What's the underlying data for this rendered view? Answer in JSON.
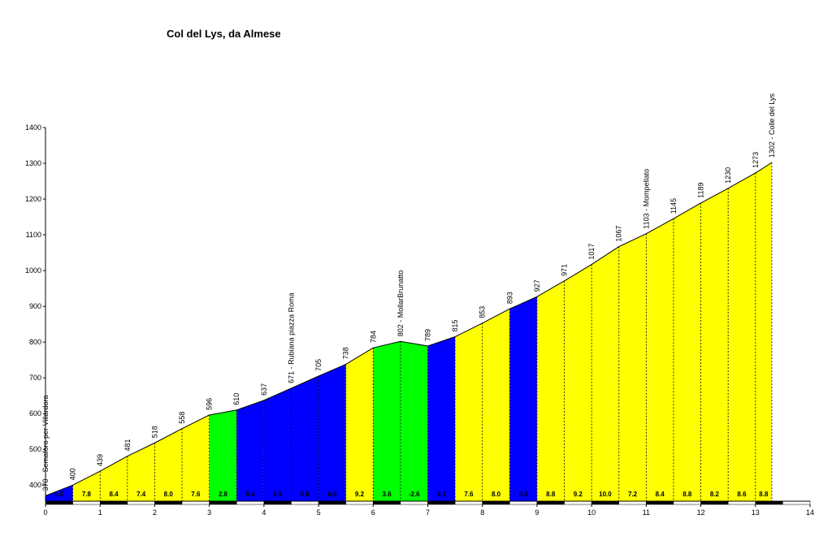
{
  "chart_data": {
    "type": "area",
    "title": "Col del Lys, da Almese",
    "x": [
      0,
      0.5,
      1,
      1.5,
      2,
      2.5,
      3,
      3.5,
      4,
      4.5,
      5,
      5.5,
      6,
      6.5,
      7,
      7.5,
      8,
      8.5,
      9,
      9.5,
      10,
      10.5,
      11,
      11.5,
      12,
      12.5,
      13,
      13.3
    ],
    "values": [
      370,
      400,
      439,
      481,
      518,
      558,
      596,
      610,
      637,
      671,
      705,
      738,
      784,
      802,
      789,
      815,
      853,
      893,
      927,
      971,
      1017,
      1067,
      1103,
      1145,
      1189,
      1230,
      1273,
      1302
    ],
    "value_labels": [
      "370 - Semaforo per Villardora",
      "400",
      "439",
      "481",
      "518",
      "558",
      "596",
      "610",
      "637",
      "671 - Rubiana piazza Roma",
      "705",
      "738",
      "784",
      "802 - MollarBrunatto",
      "789",
      "815",
      "853",
      "893",
      "927",
      "971",
      "1017",
      "1067",
      "1103 - Mompellato",
      "1145",
      "1189",
      "1230",
      "1273",
      "1302 - Colle del Lys"
    ],
    "segments": {
      "values": [
        6.0,
        7.8,
        8.4,
        7.4,
        8.0,
        7.6,
        2.8,
        5.4,
        6.8,
        6.8,
        6.6,
        9.2,
        3.6,
        -2.6,
        5.2,
        7.6,
        8.0,
        6.8,
        8.8,
        9.2,
        10.0,
        7.2,
        8.4,
        8.8,
        8.2,
        8.6,
        8.8
      ],
      "value_labels": [
        "6.0",
        "7.8",
        "8.4",
        "7.4",
        "8.0",
        "7.6",
        "2.8",
        "5.4",
        "6.8",
        "6.8",
        "6.6",
        "9.2",
        "3.6",
        "-2.6",
        "5.2",
        "7.6",
        "8.0",
        "6.8",
        "8.8",
        "9.2",
        "10.0",
        "7.2",
        "8.4",
        "8.8",
        "8.2",
        "8.6",
        "8.8"
      ],
      "colors": [
        "#0000ff",
        "#ffff00",
        "#ffff00",
        "#ffff00",
        "#ffff00",
        "#ffff00",
        "#00ff00",
        "#0000ff",
        "#0000ff",
        "#0000ff",
        "#0000ff",
        "#ffff00",
        "#00ff00",
        "#00ff00",
        "#0000ff",
        "#ffff00",
        "#ffff00",
        "#0000ff",
        "#ffff00",
        "#ffff00",
        "#ffff00",
        "#ffff00",
        "#ffff00",
        "#ffff00",
        "#ffff00",
        "#ffff00",
        "#ffff00"
      ]
    },
    "xlim": [
      0,
      14
    ],
    "xticks": [
      0,
      1,
      2,
      3,
      4,
      5,
      6,
      7,
      8,
      9,
      10,
      11,
      12,
      13,
      14
    ],
    "ylim": [
      355,
      1400
    ],
    "yticks": [
      400,
      500,
      600,
      700,
      800,
      900,
      1000,
      1100,
      1200,
      1300,
      1400
    ]
  }
}
